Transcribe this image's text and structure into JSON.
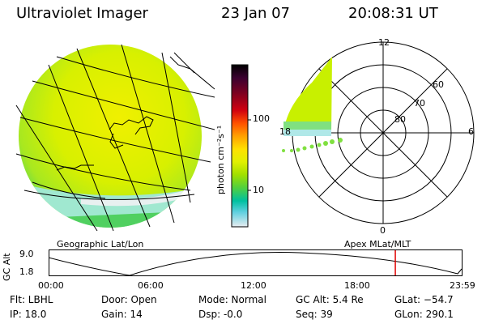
{
  "header": {
    "instrument": "Ultraviolet Imager",
    "date": "23 Jan 07",
    "time": "20:08:31 UT"
  },
  "colorbar": {
    "unit_label": "photon cm⁻²s⁻¹",
    "tick_100": "100",
    "tick_10": "10",
    "colors": [
      "#000000",
      "#3a0030",
      "#800020",
      "#c00010",
      "#ff4000",
      "#ff9000",
      "#ffd000",
      "#f0f000",
      "#c8f000",
      "#80e000",
      "#40d060",
      "#00c0b0",
      "#50d0e0",
      "#a0e0f0",
      "#e0e8f0"
    ]
  },
  "polar": {
    "mlt_labels": {
      "top": "12",
      "left": "18",
      "right": "6",
      "bottom": "0"
    },
    "lat_labels": [
      "60",
      "70",
      "80"
    ]
  },
  "projection_labels": {
    "left": "Geographic Lat/Lon",
    "right": "Apex MLat/MLT"
  },
  "orbit_plot": {
    "ylabel": "GC Alt",
    "y_max": "9.0",
    "y_min": "1.8",
    "x_ticks": [
      "00:00",
      "06:00",
      "12:00",
      "18:00",
      "23:59"
    ],
    "current_time_fraction": 0.839
  },
  "info": {
    "flt": "Flt: LBHL",
    "ip": "IP: 18.0",
    "door": "Door: Open",
    "gain": "Gain: 14",
    "mode": "Mode: Normal",
    "dsp": "Dsp:   -0.0",
    "gcalt": "GC Alt: 5.4 Re",
    "seq": "Seq: 39",
    "glat": "GLat: −54.7",
    "glon": "GLon: 290.1"
  }
}
